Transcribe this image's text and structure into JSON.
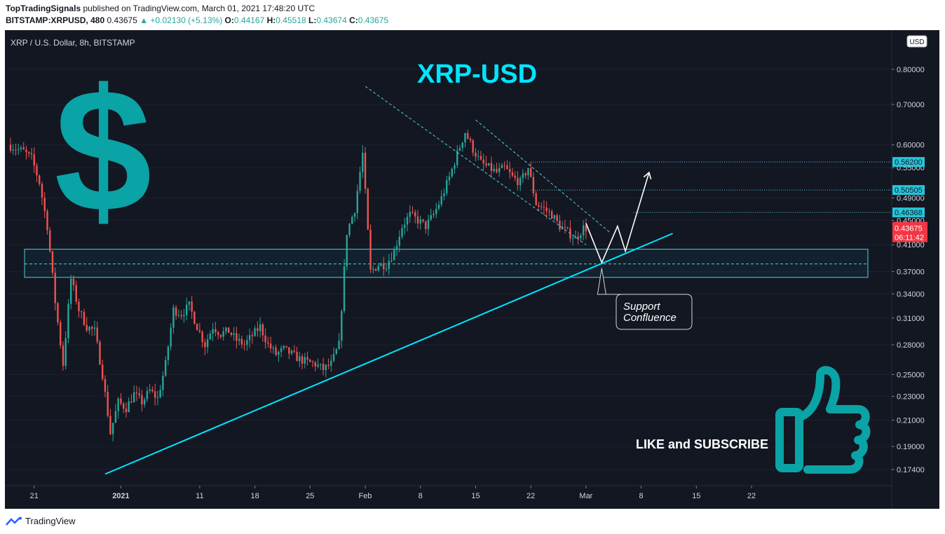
{
  "header": {
    "publisher": "TopTradingSignals",
    "published_text": "published on TradingView.com, March 01, 2021 17:48:20 UTC",
    "symbol": "BITSTAMP:XRPUSD, 480",
    "last": "0.43675",
    "change": "+0.02130 (+5.13%)",
    "o_label": "O:",
    "o": "0.44167",
    "h_label": "H:",
    "h": "0.45518",
    "l_label": "L:",
    "l": "0.43674",
    "c_label": "C:",
    "c": "0.43675"
  },
  "footer": {
    "brand": "TradingView"
  },
  "chart_data": {
    "type": "candlestick",
    "legend": "XRP / U.S. Dollar, 8h, BITSTAMP",
    "title": "XRP-USD",
    "currency": "USD",
    "y_scale": "log",
    "y_ticks": [
      "0.80000",
      "0.70000",
      "0.60000",
      "0.55000",
      "0.49000",
      "0.45000",
      "0.41000",
      "0.37000",
      "0.34000",
      "0.31000",
      "0.28000",
      "0.25000",
      "0.23000",
      "0.21000",
      "0.19000",
      "0.17400"
    ],
    "y_tick_values": [
      0.8,
      0.7,
      0.6,
      0.55,
      0.49,
      0.45,
      0.41,
      0.37,
      0.34,
      0.31,
      0.28,
      0.25,
      0.23,
      0.21,
      0.19,
      0.174
    ],
    "x_ticks": [
      {
        "label": "21",
        "date": "2020-12-21"
      },
      {
        "label": "2021",
        "date": "2021-01-01"
      },
      {
        "label": "11",
        "date": "2021-01-11"
      },
      {
        "label": "18",
        "date": "2021-01-18"
      },
      {
        "label": "25",
        "date": "2021-01-25"
      },
      {
        "label": "Feb",
        "date": "2021-02-01"
      },
      {
        "label": "8",
        "date": "2021-02-08"
      },
      {
        "label": "15",
        "date": "2021-02-15"
      },
      {
        "label": "22",
        "date": "2021-02-22"
      },
      {
        "label": "Mar",
        "date": "2021-03-01"
      },
      {
        "label": "8",
        "date": "2021-03-08"
      },
      {
        "label": "15",
        "date": "2021-03-15"
      },
      {
        "label": "22",
        "date": "2021-03-22"
      }
    ],
    "x_range": [
      "2020-12-18",
      "2021-03-30"
    ],
    "price_path": [
      [
        "2020-12-18",
        0.6
      ],
      [
        "2020-12-20",
        0.585
      ],
      [
        "2020-12-21",
        0.57
      ],
      [
        "2020-12-22",
        0.52
      ],
      [
        "2020-12-23",
        0.44
      ],
      [
        "2020-12-24",
        0.33
      ],
      [
        "2020-12-25",
        0.26
      ],
      [
        "2020-12-26",
        0.36
      ],
      [
        "2020-12-27",
        0.32
      ],
      [
        "2020-12-28",
        0.3
      ],
      [
        "2020-12-29",
        0.295
      ],
      [
        "2020-12-30",
        0.25
      ],
      [
        "2020-12-31",
        0.2
      ],
      [
        "2021-01-01",
        0.225
      ],
      [
        "2021-01-02",
        0.22
      ],
      [
        "2021-01-03",
        0.232
      ],
      [
        "2021-01-04",
        0.225
      ],
      [
        "2021-01-05",
        0.235
      ],
      [
        "2021-01-06",
        0.228
      ],
      [
        "2021-01-07",
        0.26
      ],
      [
        "2021-01-08",
        0.32
      ],
      [
        "2021-01-09",
        0.315
      ],
      [
        "2021-01-10",
        0.325
      ],
      [
        "2021-01-11",
        0.3
      ],
      [
        "2021-01-12",
        0.28
      ],
      [
        "2021-01-13",
        0.3
      ],
      [
        "2021-01-14",
        0.292
      ],
      [
        "2021-01-15",
        0.295
      ],
      [
        "2021-01-16",
        0.285
      ],
      [
        "2021-01-17",
        0.28
      ],
      [
        "2021-01-18",
        0.29
      ],
      [
        "2021-01-19",
        0.3
      ],
      [
        "2021-01-20",
        0.28
      ],
      [
        "2021-01-21",
        0.27
      ],
      [
        "2021-01-22",
        0.275
      ],
      [
        "2021-01-23",
        0.27
      ],
      [
        "2021-01-24",
        0.265
      ],
      [
        "2021-01-25",
        0.262
      ],
      [
        "2021-01-26",
        0.26
      ],
      [
        "2021-01-27",
        0.255
      ],
      [
        "2021-01-28",
        0.26
      ],
      [
        "2021-01-29",
        0.28
      ],
      [
        "2021-01-30",
        0.43
      ],
      [
        "2021-01-31",
        0.47
      ],
      [
        "2021-02-01",
        0.58
      ],
      [
        "2021-02-02",
        0.37
      ],
      [
        "2021-02-03",
        0.38
      ],
      [
        "2021-02-04",
        0.38
      ],
      [
        "2021-02-05",
        0.4
      ],
      [
        "2021-02-06",
        0.44
      ],
      [
        "2021-02-07",
        0.46
      ],
      [
        "2021-02-08",
        0.45
      ],
      [
        "2021-02-09",
        0.44
      ],
      [
        "2021-02-10",
        0.46
      ],
      [
        "2021-02-11",
        0.49
      ],
      [
        "2021-02-12",
        0.53
      ],
      [
        "2021-02-13",
        0.58
      ],
      [
        "2021-02-14",
        0.63
      ],
      [
        "2021-02-15",
        0.59
      ],
      [
        "2021-02-16",
        0.56
      ],
      [
        "2021-02-17",
        0.55
      ],
      [
        "2021-02-18",
        0.54
      ],
      [
        "2021-02-19",
        0.55
      ],
      [
        "2021-02-20",
        0.53
      ],
      [
        "2021-02-21",
        0.52
      ],
      [
        "2021-02-22",
        0.55
      ],
      [
        "2021-02-23",
        0.48
      ],
      [
        "2021-02-24",
        0.47
      ],
      [
        "2021-02-25",
        0.46
      ],
      [
        "2021-02-26",
        0.44
      ],
      [
        "2021-02-27",
        0.43
      ],
      [
        "2021-02-28",
        0.42
      ],
      [
        "2021-03-01",
        0.437
      ]
    ],
    "horizontal_levels": [
      {
        "label": "0.56200",
        "value": 0.562,
        "color": "#26c6da"
      },
      {
        "label": "0.50505",
        "value": 0.50505,
        "color": "#26c6da"
      },
      {
        "label": "0.46368",
        "value": 0.46368,
        "color": "#26c6da"
      }
    ],
    "current_price": {
      "label": "0.43675",
      "value": 0.43675,
      "countdown": "06:11:42",
      "color": "#f23645"
    },
    "support_zone": {
      "low": 0.362,
      "high": 0.403,
      "mid": 0.381
    },
    "trendline": {
      "from": {
        "date": "2020-12-30",
        "price": 0.171
      },
      "to": {
        "date": "2021-03-12",
        "price": 0.428
      }
    },
    "channel_upper": {
      "from": {
        "date": "2021-02-01",
        "price": 0.75
      },
      "to": {
        "date": "2021-03-01",
        "price": 0.41
      }
    },
    "channel_mid": {
      "from": {
        "date": "2021-02-15",
        "price": 0.66
      },
      "to": {
        "date": "2021-03-04",
        "price": 0.43
      }
    },
    "projection": [
      {
        "date": "2021-03-01",
        "price": 0.445
      },
      {
        "date": "2021-03-03",
        "price": 0.383
      },
      {
        "date": "2021-03-05",
        "price": 0.44
      },
      {
        "date": "2021-03-06",
        "price": 0.4
      },
      {
        "date": "2021-03-09",
        "price": 0.54
      }
    ],
    "annotations": {
      "support_callout": [
        "Support",
        "Confluence"
      ],
      "like_text": "LIKE and SUBSCRIBE"
    },
    "colors": {
      "bull": "#26a69a",
      "bear": "#ef5350",
      "accent": "#00e5ff",
      "teal": "#0aa3a6"
    }
  }
}
